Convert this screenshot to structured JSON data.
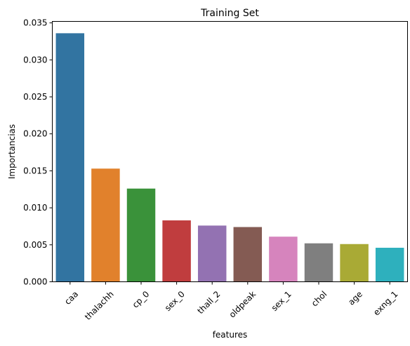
{
  "chart_data": {
    "type": "bar",
    "title": "Training Set",
    "xlabel": "features",
    "ylabel": "Importancias",
    "categories": [
      "caa",
      "thalachh",
      "cp_0",
      "sex_0",
      "thall_2",
      "oldpeak",
      "sex_1",
      "chol",
      "age",
      "exng_1"
    ],
    "values": [
      0.0336,
      0.0153,
      0.0126,
      0.0083,
      0.0076,
      0.0074,
      0.0061,
      0.0052,
      0.0051,
      0.0046
    ],
    "colors": [
      "#3274a1",
      "#e1812c",
      "#3a923a",
      "#c03d3e",
      "#9372b2",
      "#845b53",
      "#d684bd",
      "#7f7f7f",
      "#a9aa35",
      "#2eb0bd"
    ],
    "ylim": [
      0,
      0.0352
    ],
    "yticks": [
      0.0,
      0.005,
      0.01,
      0.015,
      0.02,
      0.025,
      0.03,
      0.035
    ],
    "ytick_labels": [
      "0.000",
      "0.005",
      "0.010",
      "0.015",
      "0.020",
      "0.025",
      "0.030",
      "0.035"
    ],
    "grid": false,
    "legend": "none"
  }
}
